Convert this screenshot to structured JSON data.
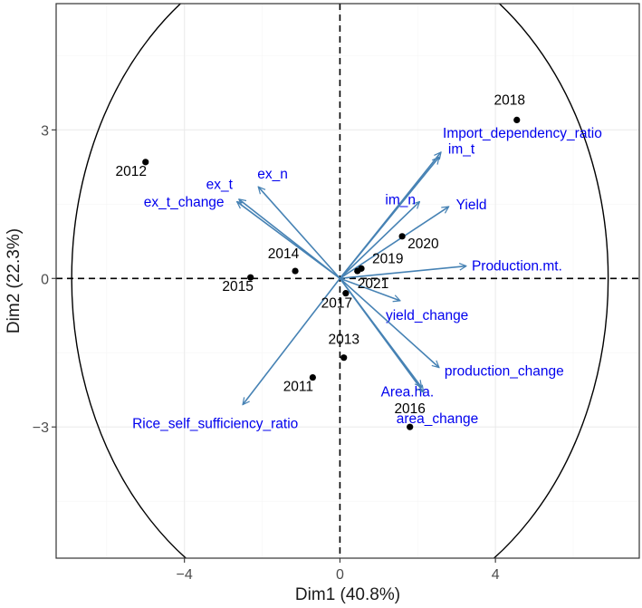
{
  "chart_data": {
    "type": "scatter",
    "subtype": "pca-biplot",
    "xlabel": "Dim1 (40.8%)",
    "ylabel": "Dim2 (22.3%)",
    "xlim": [
      -7.3,
      7.7
    ],
    "ylim": [
      -5.65,
      5.55
    ],
    "xticks": [
      -4,
      0,
      4
    ],
    "yticks": [
      -3,
      0,
      3
    ],
    "xtick_labels": [
      "−4",
      "0",
      "4"
    ],
    "ytick_labels": [
      "−3",
      "0",
      "3"
    ],
    "grid": true,
    "circle_radius": 6.9,
    "variable_color": "#4682B4",
    "label_color": "#0000EE",
    "individuals": [
      {
        "label": "2011",
        "x": -0.7,
        "y": -2.0
      },
      {
        "label": "2012",
        "x": -5.0,
        "y": 2.35
      },
      {
        "label": "2013",
        "x": 0.1,
        "y": -1.6
      },
      {
        "label": "2014",
        "x": -1.15,
        "y": 0.15
      },
      {
        "label": "2015",
        "x": -2.3,
        "y": 0.02
      },
      {
        "label": "2016",
        "x": 1.8,
        "y": -3.0
      },
      {
        "label": "2017",
        "x": 0.15,
        "y": -0.3
      },
      {
        "label": "2018",
        "x": 4.55,
        "y": 3.2
      },
      {
        "label": "2019",
        "x": 0.55,
        "y": 0.2
      },
      {
        "label": "2020",
        "x": 1.6,
        "y": 0.85
      },
      {
        "label": "2021",
        "x": 0.45,
        "y": 0.15
      }
    ],
    "variables": [
      {
        "name": "Import_dependency_ratio",
        "x": 2.6,
        "y": 2.55
      },
      {
        "name": "im_t",
        "x": 2.55,
        "y": 2.45
      },
      {
        "name": "im_n",
        "x": 2.05,
        "y": 1.55
      },
      {
        "name": "Yield",
        "x": 2.8,
        "y": 1.45
      },
      {
        "name": "Production.mt.",
        "x": 3.25,
        "y": 0.25
      },
      {
        "name": "yield_change",
        "x": 1.55,
        "y": -0.45
      },
      {
        "name": "production_change",
        "x": 2.55,
        "y": -1.8
      },
      {
        "name": "Area.ha.",
        "x": 2.1,
        "y": -2.2
      },
      {
        "name": "area_change",
        "x": 2.15,
        "y": -2.3
      },
      {
        "name": "Rice_self_sufficiency_ratio",
        "x": -2.5,
        "y": -2.55
      },
      {
        "name": "ex_n",
        "x": -2.1,
        "y": 1.85
      },
      {
        "name": "ex_t",
        "x": -2.65,
        "y": 1.55
      },
      {
        "name": "ex_t_change",
        "x": -2.6,
        "y": 1.6
      }
    ]
  }
}
